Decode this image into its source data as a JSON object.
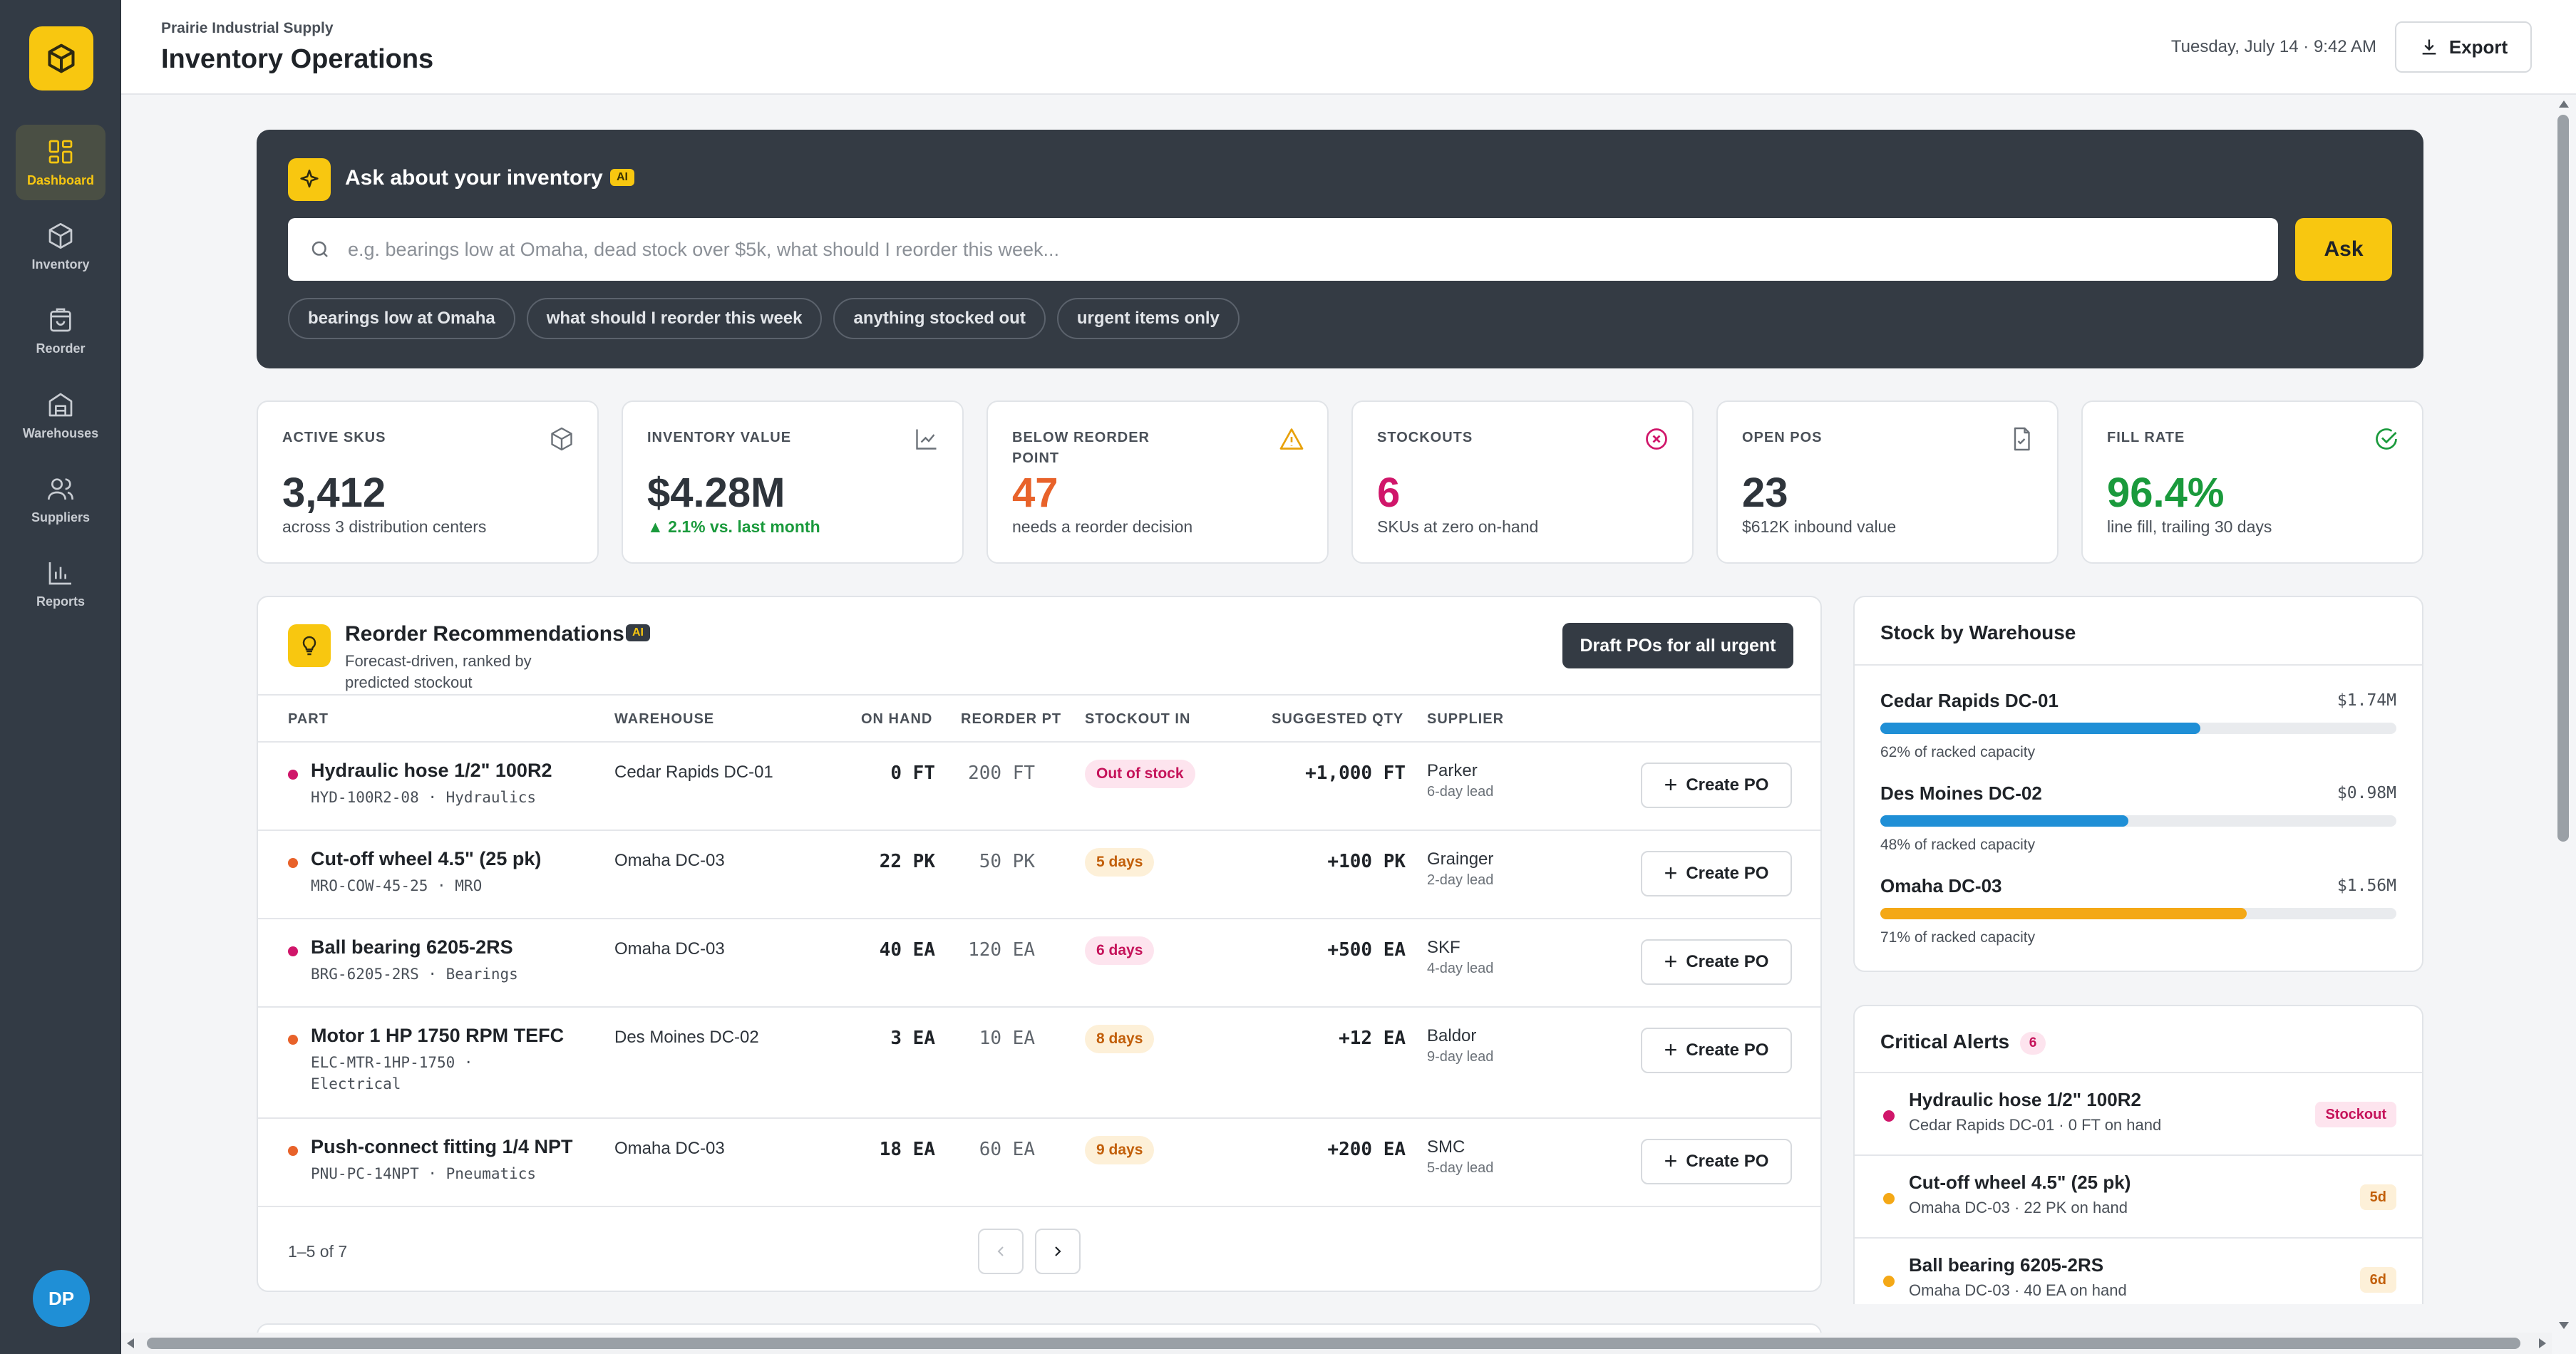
{
  "sidebar": {
    "items": [
      {
        "label": "Dashboard",
        "icon": "dashboard-icon"
      },
      {
        "label": "Inventory",
        "icon": "box-icon"
      },
      {
        "label": "Reorder",
        "icon": "cart-icon"
      },
      {
        "label": "Warehouses",
        "icon": "warehouse-icon"
      },
      {
        "label": "Suppliers",
        "icon": "users-icon"
      },
      {
        "label": "Reports",
        "icon": "bar-chart-icon"
      }
    ],
    "avatar_initials": "DP"
  },
  "header": {
    "org": "Prairie Industrial Supply",
    "title": "Inventory Operations",
    "datetime": "Tuesday, July 14 · 9:42 AM",
    "export_label": "Export"
  },
  "ai": {
    "title": "Ask about your inventory",
    "badge": "AI",
    "placeholder": "e.g. bearings low at Omaha, dead stock over $5k, what should I reorder this week...",
    "ask_label": "Ask",
    "chips": [
      "bearings low at Omaha",
      "what should I reorder this week",
      "anything stocked out",
      "urgent items only"
    ]
  },
  "kpis": [
    {
      "label": "ACTIVE SKUS",
      "value": "3,412",
      "sub": "across 3 distribution centers",
      "icon": "box-icon",
      "color": "#2e343b"
    },
    {
      "label": "INVENTORY VALUE",
      "value": "$4.28M",
      "sub": "▲ 2.1% vs. last month",
      "icon": "trend-chart-icon",
      "color": "#2e343b",
      "sub_color": "#1a9a3c"
    },
    {
      "label": "BELOW REORDER POINT",
      "value": "47",
      "sub": "needs a reorder decision",
      "icon": "warning-icon",
      "color": "#e8622a"
    },
    {
      "label": "STOCKOUTS",
      "value": "6",
      "sub": "SKUs at zero on-hand",
      "icon": "x-circle-icon",
      "color": "#d0166a"
    },
    {
      "label": "OPEN POS",
      "value": "23",
      "sub": "$612K inbound value",
      "icon": "document-check-icon",
      "color": "#2e343b"
    },
    {
      "label": "FILL RATE",
      "value": "96.4%",
      "sub": "line fill, trailing 30 days",
      "icon": "check-circle-icon",
      "color": "#1a9a3c"
    }
  ],
  "reorder": {
    "title": "Reorder Recommendations",
    "badge": "AI",
    "subtitle": "Forecast-driven, ranked by predicted stockout",
    "draft_label": "Draft POs for all urgent",
    "columns": [
      "PART",
      "WAREHOUSE",
      "ON HAND",
      "REORDER PT",
      "STOCKOUT IN",
      "SUGGESTED QTY",
      "SUPPLIER"
    ],
    "rows": [
      {
        "name": "Hydraulic hose 1/2\" 100R2",
        "sku": "HYD-100R2-08 · Hydraulics",
        "warehouse": "Cedar Rapids DC-01",
        "on_hand": "0 FT",
        "reorder_pt": "200 FT",
        "stockout": "Out of stock",
        "qty": "+1,000 FT",
        "supplier": "Parker",
        "lead": "6-day lead",
        "severity": "critical"
      },
      {
        "name": "Cut-off wheel 4.5\" (25 pk)",
        "sku": "MRO-COW-45-25 · MRO",
        "warehouse": "Omaha DC-03",
        "on_hand": "22 PK",
        "reorder_pt": "50 PK",
        "stockout": "5 days",
        "qty": "+100 PK",
        "supplier": "Grainger",
        "lead": "2-day lead",
        "severity": "high"
      },
      {
        "name": "Ball bearing 6205-2RS",
        "sku": "BRG-6205-2RS · Bearings",
        "warehouse": "Omaha DC-03",
        "on_hand": "40 EA",
        "reorder_pt": "120 EA",
        "stockout": "6 days",
        "qty": "+500 EA",
        "supplier": "SKF",
        "lead": "4-day lead",
        "severity": "critical"
      },
      {
        "name": "Motor 1 HP 1750 RPM TEFC",
        "sku": "ELC-MTR-1HP-1750 ·",
        "sku2": "Electrical",
        "warehouse": "Des Moines DC-02",
        "on_hand": "3 EA",
        "reorder_pt": "10 EA",
        "stockout": "8 days",
        "qty": "+12 EA",
        "supplier": "Baldor",
        "lead": "9-day lead",
        "severity": "high"
      },
      {
        "name": "Push-connect fitting 1/4 NPT",
        "sku": "PNU-PC-14NPT · Pneumatics",
        "warehouse": "Omaha DC-03",
        "on_hand": "18 EA",
        "reorder_pt": "60 EA",
        "stockout": "9 days",
        "qty": "+200 EA",
        "supplier": "SMC",
        "lead": "5-day lead",
        "severity": "high"
      }
    ],
    "create_label": "Create PO",
    "pager": "1–5 of 7"
  },
  "stock": {
    "title": "Stock by Warehouse",
    "warehouses": [
      {
        "name": "Cedar Rapids DC-01",
        "value": "$1.74M",
        "capacity": "62% of racked capacity",
        "pct": 62,
        "color": "#1f8fd6"
      },
      {
        "name": "Des Moines DC-02",
        "value": "$0.98M",
        "capacity": "48% of racked capacity",
        "pct": 48,
        "color": "#1f8fd6"
      },
      {
        "name": "Omaha DC-03",
        "value": "$1.56M",
        "capacity": "71% of racked capacity",
        "pct": 71,
        "color": "#f4a816"
      }
    ]
  },
  "alerts": {
    "title": "Critical Alerts",
    "count": "6",
    "items": [
      {
        "name": "Hydraulic hose 1/2\" 100R2",
        "meta": "Cedar Rapids DC-01 · 0 FT on hand",
        "tag": "Stockout",
        "dot": "#d0166a",
        "tag_bg": "#fde4ee",
        "tag_color": "#c5135a"
      },
      {
        "name": "Cut-off wheel 4.5\" (25 pk)",
        "meta": "Omaha DC-03 · 22 PK on hand",
        "tag": "5d",
        "dot": "#f4a816",
        "tag_bg": "#fdf0d8",
        "tag_color": "#c25f0a"
      },
      {
        "name": "Ball bearing 6205-2RS",
        "meta": "Omaha DC-03 · 40 EA on hand",
        "tag": "6d",
        "dot": "#f4a816",
        "tag_bg": "#fdf0d8",
        "tag_color": "#c25f0a"
      }
    ]
  },
  "colors": {
    "accent": "#f8c710",
    "sidebar": "#333b45",
    "critical": "#d0166a",
    "warning": "#e8622a",
    "success": "#1a9a3c",
    "info": "#1f8fd6"
  }
}
